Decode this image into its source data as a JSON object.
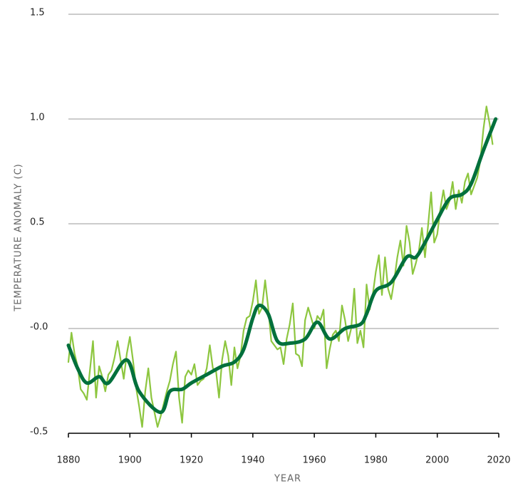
{
  "chart_data": {
    "type": "line",
    "y_label": "TEMPERATURE ANOMALY (C)",
    "x_label": "YEAR",
    "xlim": [
      1880,
      2020
    ],
    "xticks": [
      1880,
      1900,
      1920,
      1940,
      1960,
      1980,
      2000,
      2020
    ],
    "ylim": [
      -0.5,
      1.5
    ],
    "yticks": [
      -0.5,
      {
        "value": 0,
        "label": "-0.0"
      },
      0.5,
      {
        "value": 1,
        "label": "1.0"
      },
      1.5
    ],
    "grid": true,
    "series": [
      {
        "color": "#8dc63f",
        "width": 2.2,
        "smooth": false,
        "x": [
          1880,
          1881,
          1882,
          1883,
          1884,
          1885,
          1886,
          1887,
          1888,
          1889,
          1890,
          1891,
          1892,
          1893,
          1894,
          1895,
          1896,
          1897,
          1898,
          1899,
          1900,
          1901,
          1902,
          1903,
          1904,
          1905,
          1906,
          1907,
          1908,
          1909,
          1910,
          1911,
          1912,
          1913,
          1914,
          1915,
          1916,
          1917,
          1918,
          1919,
          1920,
          1921,
          1922,
          1923,
          1924,
          1925,
          1926,
          1927,
          1928,
          1929,
          1930,
          1931,
          1932,
          1933,
          1934,
          1935,
          1936,
          1937,
          1938,
          1939,
          1940,
          1941,
          1942,
          1943,
          1944,
          1945,
          1946,
          1947,
          1948,
          1949,
          1950,
          1951,
          1952,
          1953,
          1954,
          1955,
          1956,
          1957,
          1958,
          1959,
          1960,
          1961,
          1962,
          1963,
          1964,
          1965,
          1966,
          1967,
          1968,
          1969,
          1970,
          1971,
          1972,
          1973,
          1974,
          1975,
          1976,
          1977,
          1978,
          1979,
          1980,
          1981,
          1982,
          1983,
          1984,
          1985,
          1986,
          1987,
          1988,
          1989,
          1990,
          1991,
          1992,
          1993,
          1994,
          1995,
          1996,
          1997,
          1998,
          1999,
          2000,
          2001,
          2002,
          2003,
          2004,
          2005,
          2006,
          2007,
          2008,
          2009,
          2010,
          2011,
          2012,
          2013,
          2014,
          2015,
          2016,
          2017,
          2018
        ],
        "values": [
          -0.16,
          -0.02,
          -0.12,
          -0.18,
          -0.29,
          -0.31,
          -0.34,
          -0.2,
          -0.06,
          -0.33,
          -0.18,
          -0.23,
          -0.3,
          -0.22,
          -0.2,
          -0.14,
          -0.06,
          -0.15,
          -0.24,
          -0.12,
          -0.04,
          -0.15,
          -0.28,
          -0.37,
          -0.47,
          -0.3,
          -0.19,
          -0.33,
          -0.4,
          -0.47,
          -0.42,
          -0.36,
          -0.3,
          -0.25,
          -0.17,
          -0.11,
          -0.33,
          -0.45,
          -0.23,
          -0.2,
          -0.22,
          -0.17,
          -0.27,
          -0.25,
          -0.24,
          -0.19,
          -0.08,
          -0.19,
          -0.2,
          -0.33,
          -0.15,
          -0.06,
          -0.13,
          -0.27,
          -0.09,
          -0.19,
          -0.13,
          -0.01,
          0.05,
          0.06,
          0.13,
          0.23,
          0.07,
          0.1,
          0.23,
          0.1,
          -0.06,
          -0.08,
          -0.1,
          -0.09,
          -0.17,
          -0.05,
          0.02,
          0.12,
          -0.12,
          -0.13,
          -0.18,
          0.04,
          0.1,
          0.05,
          0.0,
          0.06,
          0.04,
          0.09,
          -0.19,
          -0.1,
          -0.03,
          -0.01,
          -0.06,
          0.11,
          0.04,
          -0.06,
          0.0,
          0.19,
          -0.07,
          -0.01,
          -0.09,
          0.21,
          0.09,
          0.16,
          0.27,
          0.35,
          0.16,
          0.34,
          0.19,
          0.14,
          0.23,
          0.34,
          0.42,
          0.3,
          0.49,
          0.41,
          0.26,
          0.31,
          0.37,
          0.48,
          0.34,
          0.49,
          0.65,
          0.41,
          0.45,
          0.57,
          0.66,
          0.57,
          0.61,
          0.7,
          0.57,
          0.66,
          0.6,
          0.7,
          0.74,
          0.64,
          0.68,
          0.72,
          0.8,
          0.95,
          1.06,
          0.98,
          0.88
        ]
      },
      {
        "color": "#00703c",
        "width": 5,
        "smooth": true,
        "x": [
          1880,
          1883,
          1886,
          1890,
          1893,
          1899,
          1903,
          1910,
          1913,
          1917,
          1920,
          1925,
          1930,
          1934,
          1937,
          1940,
          1942,
          1945,
          1948,
          1952,
          1957,
          1961,
          1965,
          1970,
          1975,
          1977,
          1980,
          1985,
          1990,
          1993,
          1996,
          2000,
          2004,
          2008,
          2011,
          2015,
          2019
        ],
        "values": [
          -0.08,
          -0.19,
          -0.26,
          -0.23,
          -0.26,
          -0.15,
          -0.3,
          -0.4,
          -0.3,
          -0.29,
          -0.26,
          -0.22,
          -0.18,
          -0.16,
          -0.1,
          0.05,
          0.11,
          0.07,
          -0.06,
          -0.07,
          -0.05,
          0.03,
          -0.05,
          0.0,
          0.02,
          0.07,
          0.18,
          0.22,
          0.34,
          0.34,
          0.41,
          0.52,
          0.62,
          0.64,
          0.69,
          0.85,
          1.0
        ]
      }
    ]
  }
}
